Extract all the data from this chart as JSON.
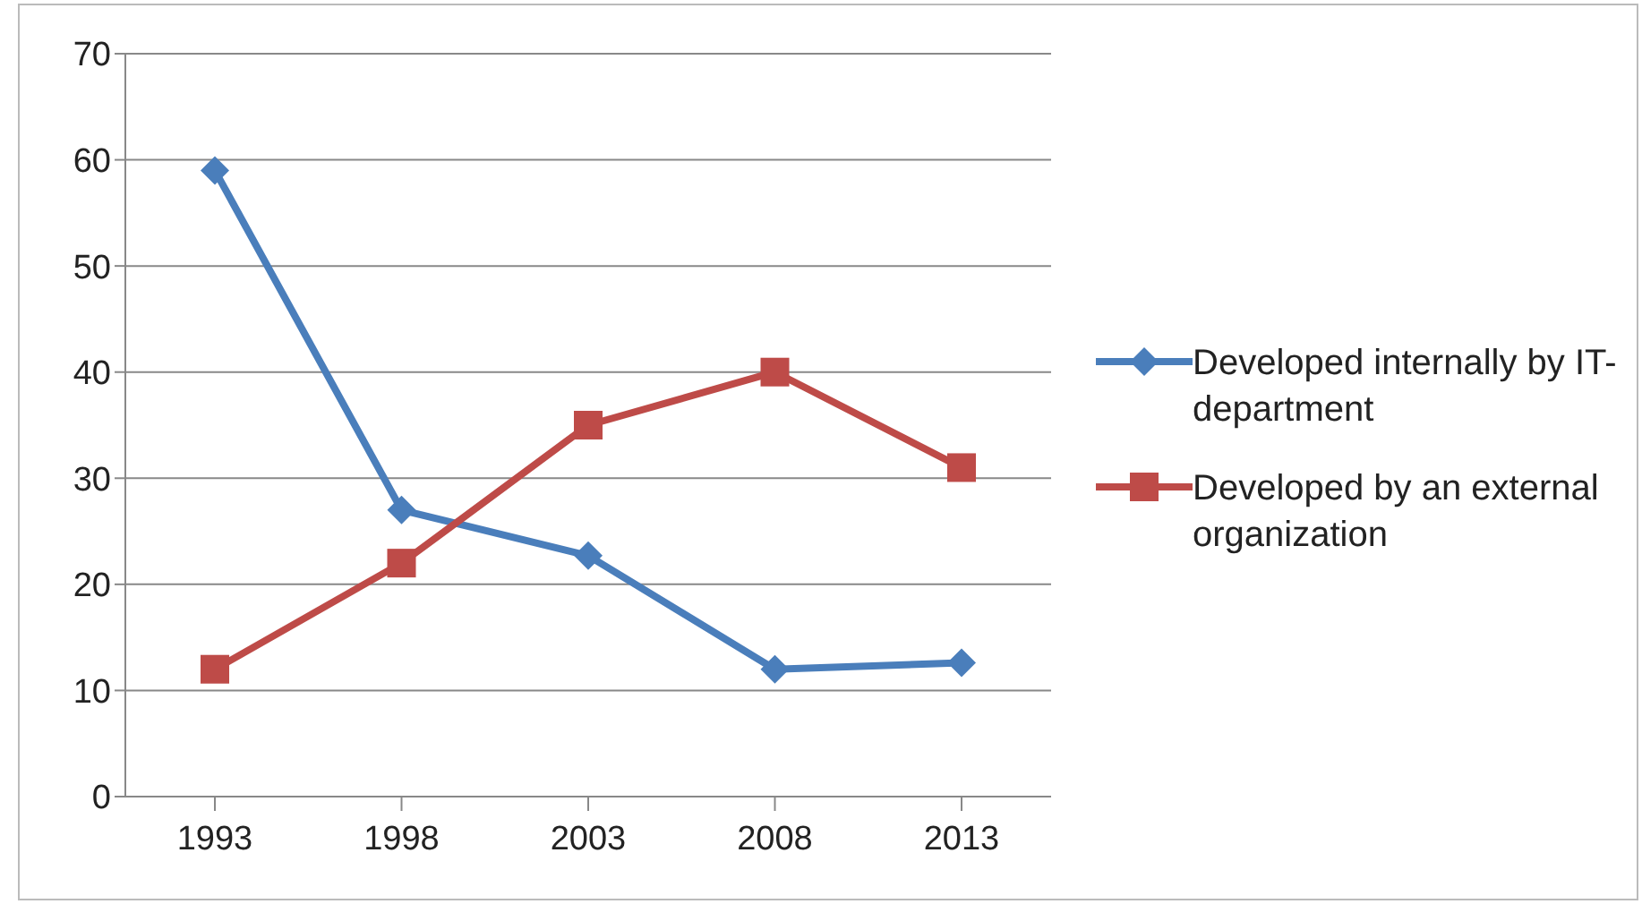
{
  "chart_data": {
    "type": "line",
    "categories": [
      "1993",
      "1998",
      "2003",
      "2008",
      "2013"
    ],
    "series": [
      {
        "name": "Developed internally by IT-department",
        "color": "#4a7ebb",
        "marker": "diamond",
        "values": [
          59,
          27,
          22.7,
          12,
          12.6
        ]
      },
      {
        "name": "Developed by an external organization",
        "color": "#be4b48",
        "marker": "square",
        "values": [
          12,
          22,
          35,
          40,
          31
        ]
      }
    ],
    "ylim": [
      0,
      70
    ],
    "yticks": [
      0,
      10,
      20,
      30,
      40,
      50,
      60,
      70
    ],
    "grid": "y",
    "legend": "right"
  }
}
